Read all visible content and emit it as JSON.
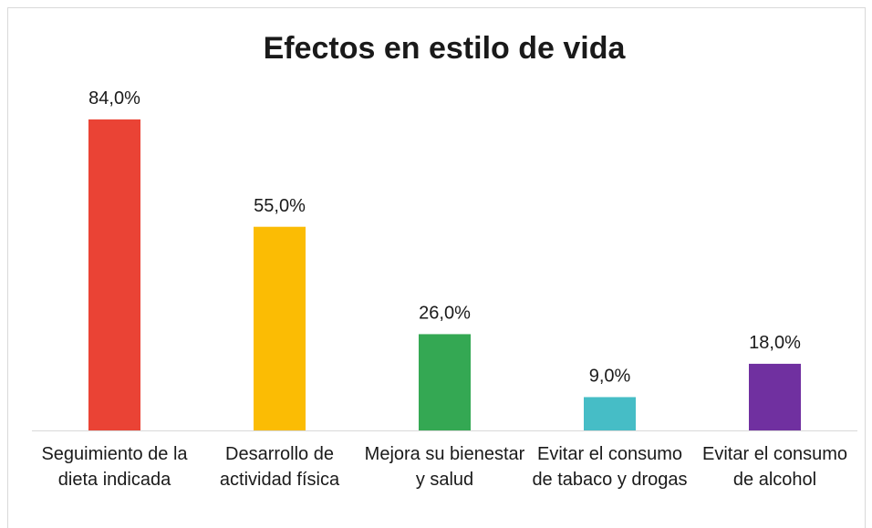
{
  "chart_data": {
    "type": "bar",
    "title": "Efectos en estilo de vida",
    "categories": [
      "Seguimiento de la dieta indicada",
      "Desarrollo de actividad física",
      "Mejora su bienestar y salud",
      "Evitar el consumo de tabaco y drogas",
      "Evitar el consumo de alcohol"
    ],
    "values": [
      84,
      55,
      26,
      9,
      18
    ],
    "value_labels": [
      "84,0%",
      "55,0%",
      "26,0%",
      "9,0%",
      "18,0%"
    ],
    "colors": [
      "#ea4335",
      "#fbbc04",
      "#34a853",
      "#46bdc6",
      "#7030a0"
    ]
  }
}
